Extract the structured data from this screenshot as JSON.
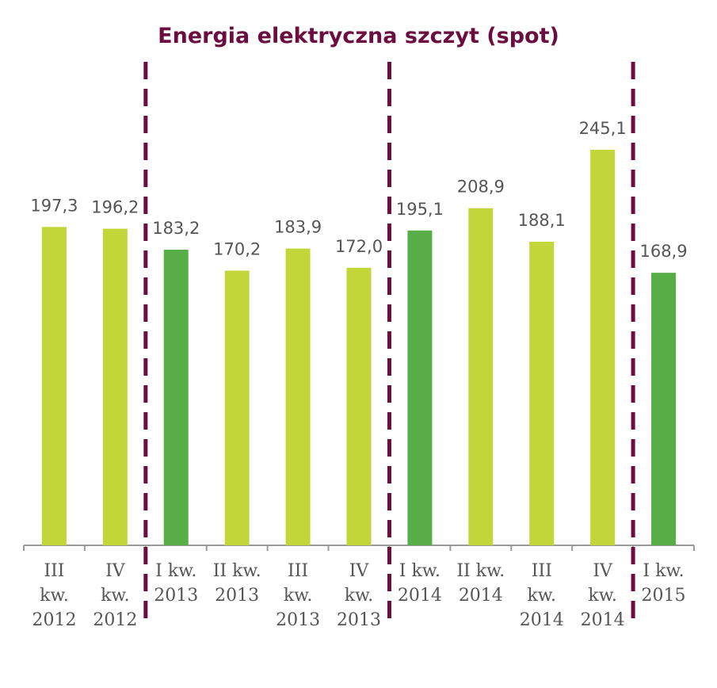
{
  "chart_data": {
    "type": "bar",
    "title": "Energia elektryczna szczyt (spot)",
    "xlabel": "",
    "ylabel": "",
    "ylim": [
      0,
      260
    ],
    "categories": [
      [
        "III",
        "kw.",
        "2012"
      ],
      [
        "IV",
        "kw.",
        "2012"
      ],
      [
        "I kw.",
        "2013"
      ],
      [
        "II kw.",
        "2013"
      ],
      [
        "III",
        "kw.",
        "2013"
      ],
      [
        "IV",
        "kw.",
        "2013"
      ],
      [
        "I kw.",
        "2014"
      ],
      [
        "II kw.",
        "2014"
      ],
      [
        "III",
        "kw.",
        "2014"
      ],
      [
        "IV",
        "kw.",
        "2014"
      ],
      [
        "I kw.",
        "2015"
      ]
    ],
    "values": [
      197.3,
      196.2,
      183.2,
      170.2,
      183.9,
      172.0,
      195.1,
      208.9,
      188.1,
      245.1,
      168.9
    ],
    "value_labels": [
      "197,3",
      "196,2",
      "183,2",
      "170,2",
      "183,9",
      "172,0",
      "195,1",
      "208,9",
      "188,1",
      "245,1",
      "168,9"
    ],
    "first_quarter_highlight": [
      false,
      false,
      true,
      false,
      false,
      false,
      true,
      false,
      false,
      false,
      true
    ],
    "year_separators_after_index": [
      1,
      5,
      9
    ],
    "colors": {
      "bar": "#c2d63a",
      "bar_highlight": "#57ae46",
      "separator": "#6b0d3e",
      "axis": "#999999",
      "label": "#555555"
    }
  }
}
